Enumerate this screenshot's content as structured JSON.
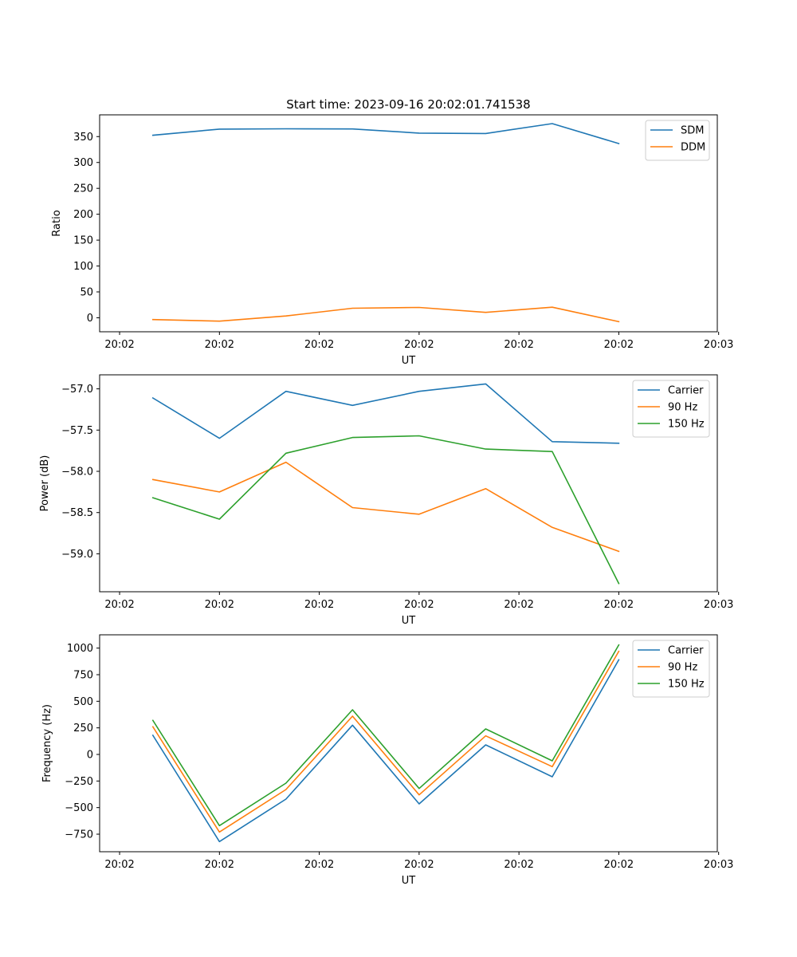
{
  "figure": {
    "title": "Start time: 2023-09-16 20:02:01.741538",
    "x_tick_labels": [
      "20:02",
      "20:02",
      "20:02",
      "20:02",
      "20:02",
      "20:02",
      "20:03"
    ],
    "colors": {
      "blue": "#1f77b4",
      "orange": "#ff7f0e",
      "green": "#2ca02c"
    }
  },
  "chart_data": [
    {
      "type": "line",
      "title": "Start time: 2023-09-16 20:02:01.741538",
      "xlabel": "UT",
      "ylabel": "Ratio",
      "x": [
        1,
        2,
        3,
        4,
        5,
        6,
        7,
        8
      ],
      "xlim": [
        0.2,
        9.48
      ],
      "ylim": [
        -27,
        392
      ],
      "yticks": [
        0,
        50,
        100,
        150,
        200,
        250,
        300,
        350
      ],
      "ytick_labels": [
        "0",
        "50",
        "100",
        "150",
        "200",
        "250",
        "300",
        "350"
      ],
      "legend_position": "top-right",
      "series": [
        {
          "name": "SDM",
          "color": "#1f77b4",
          "values": [
            352.5,
            364.5,
            365,
            364.8,
            356.8,
            356,
            375,
            336.5
          ]
        },
        {
          "name": "DDM",
          "color": "#ff7f0e",
          "values": [
            -3.5,
            -6.5,
            3.5,
            18.5,
            20,
            10.5,
            20.5,
            -7.5
          ]
        }
      ]
    },
    {
      "type": "line",
      "xlabel": "UT",
      "ylabel": "Power (dB)",
      "x": [
        1,
        2,
        3,
        4,
        5,
        6,
        7,
        8
      ],
      "xlim": [
        0.2,
        9.48
      ],
      "ylim": [
        -59.46,
        -56.83
      ],
      "yticks": [
        -59.0,
        -58.5,
        -58.0,
        -57.5,
        -57.0
      ],
      "ytick_labels": [
        "−59.0",
        "−58.5",
        "−58.0",
        "−57.5",
        "−57.0"
      ],
      "legend_position": "top-right",
      "series": [
        {
          "name": "Carrier",
          "color": "#1f77b4",
          "values": [
            -57.11,
            -57.6,
            -57.03,
            -57.2,
            -57.03,
            -56.94,
            -57.64,
            -57.66
          ]
        },
        {
          "name": "90 Hz",
          "color": "#ff7f0e",
          "values": [
            -58.1,
            -58.25,
            -57.89,
            -58.44,
            -58.52,
            -58.21,
            -58.68,
            -58.97
          ]
        },
        {
          "name": "150 Hz",
          "color": "#2ca02c",
          "values": [
            -58.32,
            -58.58,
            -57.78,
            -57.59,
            -57.57,
            -57.73,
            -57.76,
            -59.36
          ]
        }
      ]
    },
    {
      "type": "line",
      "xlabel": "UT",
      "ylabel": "Frequency (Hz)",
      "x": [
        1,
        2,
        3,
        4,
        5,
        6,
        7,
        8
      ],
      "xlim": [
        0.2,
        9.48
      ],
      "ylim": [
        -915,
        1125
      ],
      "yticks": [
        -750,
        -500,
        -250,
        0,
        250,
        500,
        750,
        1000
      ],
      "ytick_labels": [
        "−750",
        "−500",
        "−250",
        "0",
        "250",
        "500",
        "750",
        "1000"
      ],
      "legend_position": "top-right",
      "series": [
        {
          "name": "Carrier",
          "color": "#1f77b4",
          "values": [
            180,
            -820,
            -420,
            275,
            -465,
            90,
            -210,
            890
          ]
        },
        {
          "name": "90 Hz",
          "color": "#ff7f0e",
          "values": [
            260,
            -730,
            -330,
            360,
            -380,
            175,
            -115,
            970
          ]
        },
        {
          "name": "150 Hz",
          "color": "#2ca02c",
          "values": [
            320,
            -670,
            -270,
            420,
            -320,
            240,
            -60,
            1030
          ]
        }
      ]
    }
  ]
}
